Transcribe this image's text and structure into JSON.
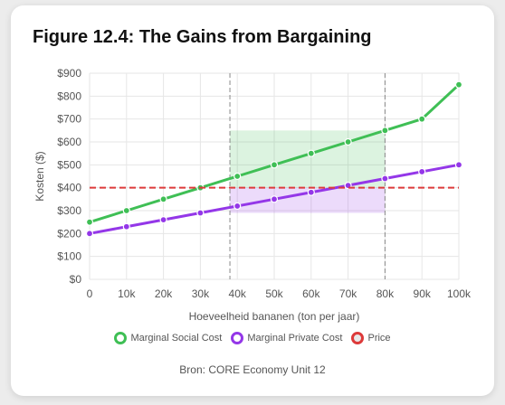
{
  "card": {
    "title": "Figure 12.4: The Gains from Bargaining",
    "source": "Bron: CORE Economy Unit 12"
  },
  "chart_data": {
    "type": "line",
    "xlabel": "Hoeveelheid bananen (ton per jaar)",
    "ylabel": "Kosten ($)",
    "xlim": [
      0,
      100000
    ],
    "ylim": [
      0,
      900
    ],
    "x_ticks": [
      0,
      10000,
      20000,
      30000,
      40000,
      50000,
      60000,
      70000,
      80000,
      90000,
      100000
    ],
    "x_tick_labels": [
      "0",
      "10k",
      "20k",
      "30k",
      "40k",
      "50k",
      "60k",
      "70k",
      "80k",
      "90k",
      "100k"
    ],
    "y_ticks": [
      0,
      100,
      200,
      300,
      400,
      500,
      600,
      700,
      800,
      900
    ],
    "y_tick_labels": [
      "$0",
      "$100",
      "$200",
      "$300",
      "$400",
      "$500",
      "$600",
      "$700",
      "$800",
      "$900"
    ],
    "grid": true,
    "legend_position": "bottom",
    "x": [
      0,
      10000,
      20000,
      30000,
      40000,
      50000,
      60000,
      70000,
      80000,
      90000,
      100000
    ],
    "series": [
      {
        "name": "Marginal Social Cost",
        "color": "#3fbf55",
        "values": [
          250,
          300,
          350,
          400,
          450,
          500,
          550,
          600,
          650,
          700,
          850
        ]
      },
      {
        "name": "Marginal Private Cost",
        "color": "#9437e8",
        "values": [
          200,
          230,
          260,
          290,
          320,
          350,
          380,
          410,
          440,
          470,
          500
        ]
      },
      {
        "name": "Price",
        "color": "#dd3a3a",
        "style": "dashed",
        "value": 400
      }
    ],
    "vertical_lines": [
      38000,
      80000
    ],
    "shaded_regions": [
      {
        "x": [
          38000,
          80000
        ],
        "y": [
          400,
          650
        ],
        "color": "#3fbf55"
      },
      {
        "x": [
          38000,
          80000
        ],
        "y": [
          290,
          400
        ],
        "color": "#9437e8"
      }
    ]
  }
}
